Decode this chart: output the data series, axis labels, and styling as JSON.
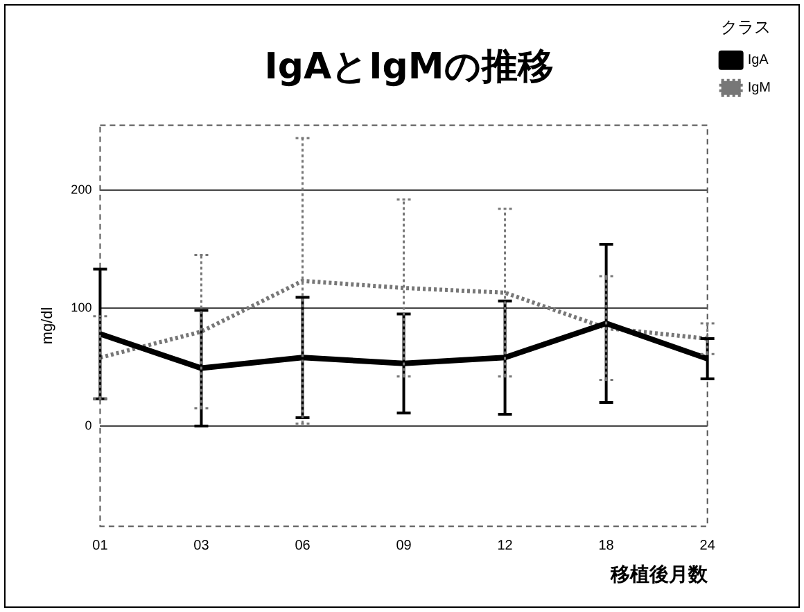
{
  "chart_data": {
    "type": "line",
    "title": "IgAとIgMの推移",
    "xlabel": "移植後月数",
    "ylabel": "mg/dl",
    "legend_title": "クラス",
    "categories": [
      "01",
      "03",
      "06",
      "09",
      "12",
      "18",
      "24"
    ],
    "series": [
      {
        "name": "IgA",
        "color": "#000000",
        "line_style": "solid",
        "values": [
          78,
          49,
          58,
          53,
          58,
          87,
          57
        ],
        "errors": [
          55,
          49,
          51,
          42,
          48,
          67,
          17
        ]
      },
      {
        "name": "IgM",
        "color": "#777777",
        "line_style": "dotted",
        "values": [
          58,
          80,
          123,
          117,
          113,
          83,
          74
        ],
        "errors": [
          35,
          65,
          121,
          75,
          71,
          44,
          13
        ]
      }
    ],
    "ylim": [
      -85,
      255
    ],
    "yticks": [
      0,
      100,
      200
    ],
    "grid": "y",
    "legend": "top right",
    "marker": "none"
  }
}
